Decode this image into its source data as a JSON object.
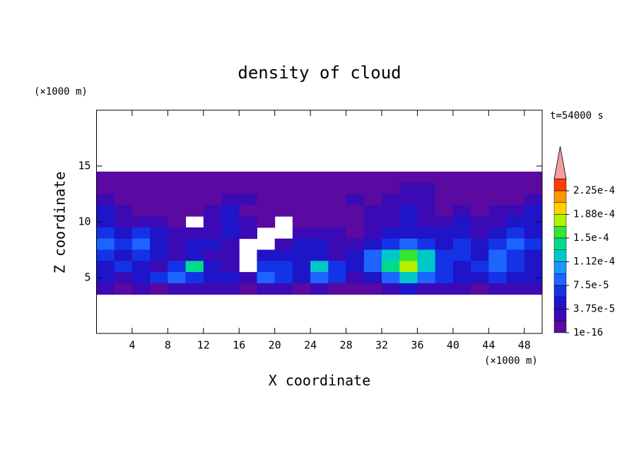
{
  "chart_data": {
    "type": "contour",
    "title": "density of cloud",
    "xlabel": "X coordinate",
    "ylabel": "Z coordinate",
    "x_unit": "(×1000 m)",
    "y_unit": "(×1000 m)",
    "annotation": "t=54000 s",
    "xlim": [
      0,
      50
    ],
    "ylim": [
      0,
      20
    ],
    "xticks": [
      4,
      8,
      12,
      16,
      20,
      24,
      28,
      32,
      36,
      40,
      44,
      48
    ],
    "yticks": [
      5,
      10,
      15
    ],
    "x": [
      1,
      3,
      5,
      7,
      9,
      11,
      13,
      15,
      17,
      19,
      21,
      23,
      25,
      27,
      29,
      31,
      33,
      35,
      37,
      39,
      41,
      43,
      45,
      47,
      49
    ],
    "y": [
      14,
      13,
      12,
      11,
      10,
      9,
      8,
      7,
      6,
      5,
      4
    ],
    "z_values": [
      [
        1e-05,
        1e-05,
        1e-05,
        1e-05,
        1e-05,
        1e-05,
        1e-05,
        1e-05,
        1e-05,
        1e-05,
        1e-05,
        1e-05,
        1e-05,
        1e-05,
        1e-05,
        1e-05,
        1e-05,
        1e-05,
        1e-05,
        1e-05,
        1e-05,
        1e-05,
        1e-05,
        1e-05,
        1e-05
      ],
      [
        1e-05,
        1e-05,
        1e-05,
        1e-05,
        1e-05,
        1e-05,
        1e-05,
        1e-05,
        1e-05,
        1e-05,
        1e-05,
        1e-05,
        1e-05,
        1e-05,
        1e-05,
        1e-05,
        1e-05,
        3e-05,
        3e-05,
        1e-05,
        1e-05,
        1e-05,
        1e-05,
        1e-05,
        1e-05
      ],
      [
        3e-05,
        1e-05,
        1e-05,
        1e-05,
        1e-05,
        1e-05,
        1e-05,
        3e-05,
        3e-05,
        1e-05,
        1e-05,
        1e-05,
        1e-05,
        1e-05,
        3e-05,
        1e-05,
        3e-05,
        3e-05,
        3e-05,
        1e-05,
        1e-05,
        1e-05,
        1e-05,
        1e-05,
        3e-05
      ],
      [
        5e-05,
        3e-05,
        1e-05,
        1e-05,
        1e-05,
        1e-05,
        3e-05,
        5e-05,
        1e-05,
        1e-05,
        1e-05,
        1e-05,
        1e-05,
        1e-05,
        1e-05,
        3e-05,
        3e-05,
        5e-05,
        3e-05,
        1e-05,
        3e-05,
        1e-05,
        3e-05,
        3e-05,
        5e-05
      ],
      [
        5e-05,
        3e-05,
        3e-05,
        3e-05,
        1e-05,
        null,
        3e-05,
        5e-05,
        3e-05,
        1e-05,
        null,
        1e-05,
        1e-05,
        1e-05,
        1e-05,
        3e-05,
        3e-05,
        5e-05,
        3e-05,
        3e-05,
        5e-05,
        3e-05,
        3e-05,
        5e-05,
        5e-05
      ],
      [
        7e-05,
        5e-05,
        7e-05,
        5e-05,
        3e-05,
        3e-05,
        3e-05,
        5e-05,
        3e-05,
        null,
        null,
        3e-05,
        3e-05,
        3e-05,
        1e-05,
        3e-05,
        5e-05,
        5e-05,
        5e-05,
        5e-05,
        5e-05,
        3e-05,
        5e-05,
        7e-05,
        5e-05
      ],
      [
        9e-05,
        7e-05,
        9e-05,
        5e-05,
        3e-05,
        5e-05,
        5e-05,
        3e-05,
        null,
        null,
        3e-05,
        5e-05,
        5e-05,
        3e-05,
        3e-05,
        5e-05,
        7e-05,
        9e-05,
        7e-05,
        5e-05,
        7e-05,
        5e-05,
        7e-05,
        9e-05,
        7e-05
      ],
      [
        7e-05,
        5e-05,
        7e-05,
        5e-05,
        3e-05,
        5e-05,
        3e-05,
        3e-05,
        null,
        5e-05,
        5e-05,
        5e-05,
        5e-05,
        3e-05,
        5e-05,
        9e-05,
        0.00012,
        0.00016,
        0.00012,
        7e-05,
        7e-05,
        5e-05,
        9e-05,
        7e-05,
        5e-05
      ],
      [
        5e-05,
        7e-05,
        5e-05,
        3e-05,
        7e-05,
        0.00014,
        5e-05,
        3e-05,
        null,
        7e-05,
        7e-05,
        5e-05,
        0.00012,
        7e-05,
        5e-05,
        9e-05,
        0.00014,
        0.00018,
        0.00012,
        7e-05,
        5e-05,
        7e-05,
        9e-05,
        7e-05,
        5e-05
      ],
      [
        5e-05,
        3e-05,
        5e-05,
        7e-05,
        9e-05,
        7e-05,
        5e-05,
        5e-05,
        3e-05,
        9e-05,
        7e-05,
        5e-05,
        9e-05,
        7e-05,
        3e-05,
        5e-05,
        9e-05,
        0.00012,
        9e-05,
        7e-05,
        5e-05,
        5e-05,
        7e-05,
        5e-05,
        5e-05
      ],
      [
        3e-05,
        1e-05,
        3e-05,
        1e-05,
        3e-05,
        3e-05,
        3e-05,
        3e-05,
        1e-05,
        3e-05,
        3e-05,
        1e-05,
        3e-05,
        1e-05,
        1e-05,
        1e-05,
        3e-05,
        5e-05,
        3e-05,
        3e-05,
        3e-05,
        1e-05,
        3e-05,
        3e-05,
        3e-05
      ]
    ],
    "levels": [
      1e-16,
      1.875e-05,
      3.75e-05,
      5.625e-05,
      7.5e-05,
      9.375e-05,
      0.0001125,
      0.00013125,
      0.00015,
      0.00016875,
      0.0001875,
      0.00020625,
      0.000225,
      0.00024375
    ],
    "colors": [
      "#5a0aa0",
      "#3c0ab4",
      "#1e14c8",
      "#1432e6",
      "#1e64ff",
      "#1e96ff",
      "#00c8c8",
      "#00dc8c",
      "#32e632",
      "#b4f000",
      "#ffd200",
      "#ff9600",
      "#ff3c00"
    ],
    "extend_color": "#f0a0a0",
    "cbar_ticks": [
      {
        "value": 1e-16,
        "label": "1e-16"
      },
      {
        "value": 3.75e-05,
        "label": "3.75e-5"
      },
      {
        "value": 7.5e-05,
        "label": "7.5e-5"
      },
      {
        "value": 0.0001125,
        "label": "1.12e-4"
      },
      {
        "value": 0.00015,
        "label": "1.5e-4"
      },
      {
        "value": 0.0001875,
        "label": "1.88e-4"
      },
      {
        "value": 0.000225,
        "label": "2.25e-4"
      }
    ]
  }
}
